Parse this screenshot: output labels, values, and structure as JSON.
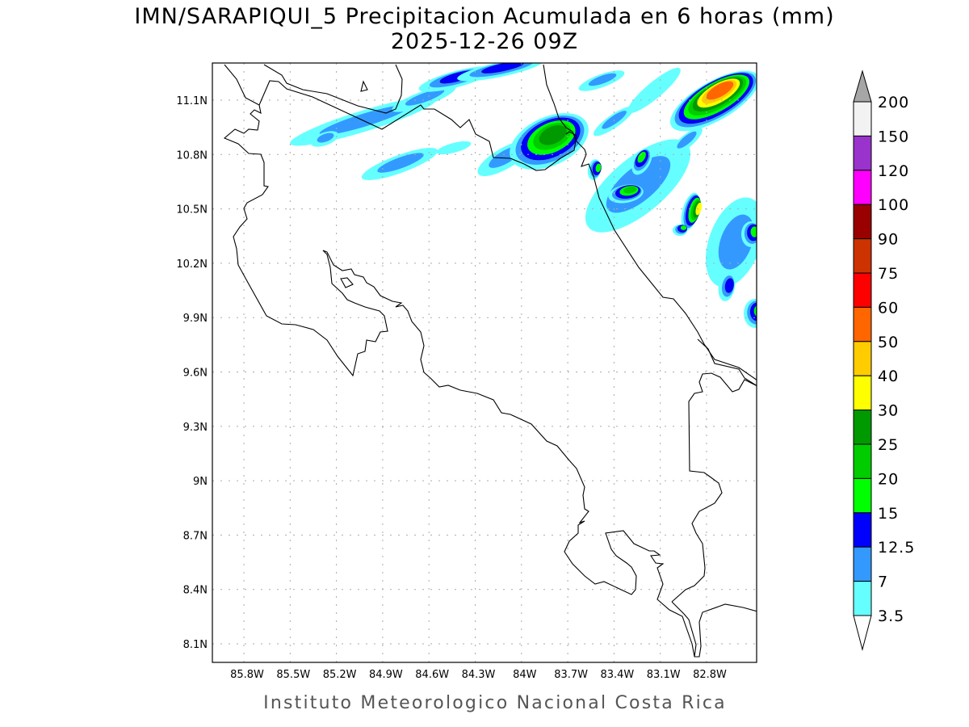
{
  "title": {
    "line1": "IMN/SARAPIQUI_5 Precipitacion Acumulada en 6 horas (mm)",
    "line2": "2025-12-26 09Z"
  },
  "map": {
    "lat_labels": [
      "11.1N",
      "10.8N",
      "10.5N",
      "10.2N",
      "9.9N",
      "9.6N",
      "9.3N",
      "9N",
      "8.7N",
      "8.4N",
      "8.1N"
    ],
    "lon_labels": [
      "85.8W",
      "85.5W",
      "85.2W",
      "84.9W",
      "84.6W",
      "84.3W",
      "84W",
      "83.7W",
      "83.4W",
      "83.1W",
      "82.8W"
    ],
    "lat_range": [
      8.1,
      11.1
    ],
    "lon_range": [
      -85.8,
      -82.8
    ]
  },
  "colorbar": {
    "over_color": "#a6a6a6",
    "under_color": "#ffffff",
    "segments_top_to_bottom": [
      {
        "color": "#f2f2f2"
      },
      {
        "color": "#9933cc"
      },
      {
        "color": "#ff00ff"
      },
      {
        "color": "#990000"
      },
      {
        "color": "#cc3300"
      },
      {
        "color": "#ff0000"
      },
      {
        "color": "#ff6600"
      },
      {
        "color": "#ffcc00"
      },
      {
        "color": "#ffff00"
      },
      {
        "color": "#009900"
      },
      {
        "color": "#00cc00"
      },
      {
        "color": "#00ff00"
      },
      {
        "color": "#0000ff"
      },
      {
        "color": "#3399ff"
      },
      {
        "color": "#66ffff"
      }
    ],
    "labels": [
      "200",
      "150",
      "120",
      "100",
      "90",
      "75",
      "60",
      "50",
      "40",
      "30",
      "25",
      "20",
      "15",
      "12.5",
      "7",
      "3.5"
    ]
  },
  "footer": "Instituto Meteorologico Nacional Costa Rica"
}
